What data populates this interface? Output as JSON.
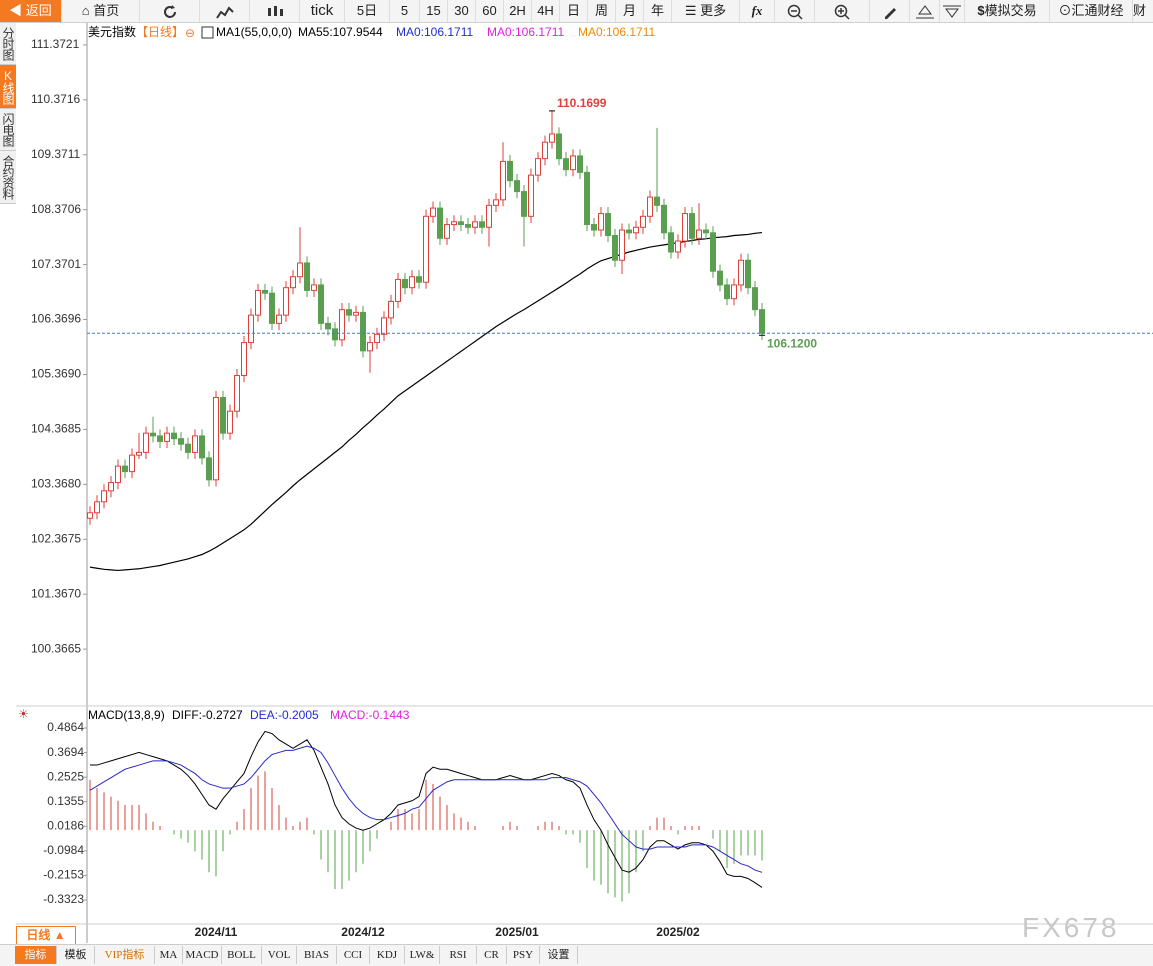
{
  "toolbar": {
    "items": [
      "返回",
      "首页",
      "tick",
      "5日",
      "5",
      "15",
      "30",
      "60",
      "2H",
      "4H",
      "日",
      "周",
      "月",
      "年",
      "更多",
      "模拟交易",
      "汇通财经",
      "财"
    ]
  },
  "side_tabs": [
    "分时图",
    "K线图",
    "闪电图",
    "合约资料"
  ],
  "chart_data": [
    {
      "type": "candlestick",
      "title": "美元指数",
      "period": "【日线】",
      "legend": [
        {
          "text": "MA1(55,0,0,0)",
          "color": "#000000"
        },
        {
          "text": "MA55:107.9544",
          "color": "#000000"
        },
        {
          "text": "MA0:106.1711",
          "color": "#1f2ad6"
        },
        {
          "text": "MA0:106.1711",
          "color": "#e020e0"
        },
        {
          "text": "MA0:106.1711",
          "color": "#f08a00"
        }
      ],
      "up_color": "#e0403a",
      "down_color": "#5a9e50",
      "categories": [
        null,
        null,
        null,
        null,
        null,
        null,
        null,
        null,
        null,
        null,
        null,
        null,
        null,
        null,
        null,
        null,
        null,
        null,
        "2024/11",
        null,
        null,
        null,
        null,
        null,
        null,
        null,
        null,
        null,
        null,
        null,
        null,
        null,
        null,
        null,
        null,
        null,
        null,
        null,
        null,
        "2024/12",
        null,
        null,
        null,
        null,
        null,
        null,
        null,
        null,
        null,
        null,
        null,
        null,
        null,
        null,
        null,
        null,
        null,
        null,
        null,
        null,
        null,
        "2025/01",
        null,
        null,
        null,
        null,
        null,
        null,
        null,
        null,
        null,
        null,
        null,
        null,
        null,
        null,
        null,
        null,
        null,
        null,
        null,
        null,
        null,
        null,
        "2025/02",
        null,
        null,
        null,
        null,
        null,
        null,
        null,
        null,
        null,
        null,
        null,
        null
      ],
      "open": [
        102.75,
        102.85,
        103.05,
        103.25,
        103.4,
        103.7,
        103.6,
        103.9,
        103.95,
        104.3,
        104.25,
        104.15,
        104.3,
        104.2,
        104.1,
        103.95,
        104.25,
        103.85,
        103.45,
        104.95,
        104.3,
        104.7,
        105.35,
        105.95,
        106.45,
        106.9,
        106.85,
        106.3,
        106.45,
        106.95,
        107.15,
        107.4,
        106.9,
        107.0,
        106.3,
        106.2,
        106.0,
        106.55,
        106.45,
        106.5,
        105.8,
        105.95,
        106.1,
        106.4,
        106.7,
        107.1,
        106.95,
        107.15,
        107.05,
        108.25,
        108.4,
        107.85,
        108.1,
        108.15,
        108.1,
        108.05,
        108.15,
        108.05,
        108.45,
        108.55,
        109.25,
        108.9,
        108.7,
        108.25,
        109.0,
        109.3,
        109.6,
        109.75,
        109.3,
        109.1,
        109.35,
        109.05,
        108.1,
        108.0,
        108.3,
        107.9,
        107.45,
        108.0,
        107.95,
        108.05,
        108.25,
        108.6,
        108.45,
        107.95,
        107.6,
        107.8,
        108.3,
        107.85,
        108.0,
        107.95,
        107.25,
        107.0,
        106.75,
        107.0,
        107.45,
        106.95,
        106.55
      ],
      "high": [
        102.97,
        103.17,
        103.37,
        103.52,
        103.82,
        103.82,
        104.02,
        104.3,
        104.42,
        104.6,
        104.37,
        104.42,
        104.42,
        104.32,
        104.22,
        104.37,
        104.37,
        103.97,
        105.07,
        105.07,
        104.82,
        105.47,
        106.07,
        106.57,
        107.02,
        107.02,
        106.97,
        106.57,
        107.07,
        107.27,
        108.05,
        107.52,
        107.12,
        107.12,
        106.42,
        106.32,
        106.67,
        106.67,
        106.62,
        106.62,
        106.07,
        106.22,
        106.52,
        106.82,
        107.22,
        107.22,
        107.27,
        107.27,
        108.37,
        108.52,
        108.52,
        108.22,
        108.27,
        108.27,
        108.22,
        108.27,
        108.27,
        108.57,
        108.67,
        109.6,
        109.37,
        109.02,
        108.82,
        109.12,
        109.42,
        109.72,
        110.1699,
        109.87,
        109.42,
        109.47,
        109.47,
        109.17,
        108.22,
        108.42,
        108.42,
        108.02,
        108.12,
        108.12,
        108.17,
        108.37,
        108.72,
        109.86,
        108.57,
        108.07,
        107.92,
        108.42,
        108.42,
        108.49,
        108.12,
        108.07,
        107.37,
        107.12,
        107.12,
        107.57,
        107.57,
        107.07,
        106.67
      ],
      "low": [
        102.63,
        102.73,
        102.93,
        103.13,
        103.28,
        103.48,
        103.48,
        103.83,
        103.83,
        104.13,
        104.03,
        104.03,
        104.08,
        103.98,
        103.83,
        103.83,
        103.73,
        103.33,
        103.33,
        104.18,
        104.18,
        104.58,
        105.23,
        105.83,
        106.33,
        106.73,
        106.18,
        106.18,
        106.33,
        106.83,
        107.03,
        106.78,
        106.78,
        106.18,
        106.08,
        105.88,
        105.88,
        106.33,
        106.33,
        105.68,
        105.4,
        105.83,
        105.98,
        106.28,
        106.58,
        106.83,
        106.83,
        106.93,
        106.93,
        108.13,
        107.73,
        107.73,
        107.98,
        107.98,
        107.93,
        107.93,
        107.93,
        107.7,
        108.33,
        108.43,
        108.78,
        108.58,
        107.7,
        108.13,
        108.88,
        109.18,
        109.48,
        109.18,
        108.98,
        108.98,
        108.93,
        107.98,
        107.88,
        107.88,
        107.78,
        107.33,
        107.2,
        107.83,
        107.83,
        107.93,
        108.13,
        108.33,
        107.83,
        107.48,
        107.48,
        107.68,
        107.73,
        107.73,
        107.83,
        107.13,
        106.88,
        106.63,
        106.63,
        106.88,
        106.83,
        106.43,
        106.0
      ],
      "close": [
        102.85,
        103.05,
        103.25,
        103.4,
        103.7,
        103.6,
        103.9,
        103.95,
        104.3,
        104.25,
        104.15,
        104.3,
        104.2,
        104.1,
        103.95,
        104.25,
        103.85,
        103.45,
        104.95,
        104.3,
        104.7,
        105.35,
        105.95,
        106.45,
        106.9,
        106.85,
        106.3,
        106.45,
        106.95,
        107.15,
        107.4,
        106.9,
        107.0,
        106.3,
        106.2,
        106.0,
        106.55,
        106.45,
        106.5,
        105.8,
        105.95,
        106.1,
        106.4,
        106.7,
        107.1,
        106.95,
        107.15,
        107.05,
        108.25,
        108.4,
        107.85,
        108.1,
        108.15,
        108.1,
        108.05,
        108.15,
        108.05,
        108.45,
        108.55,
        109.25,
        108.9,
        108.7,
        108.25,
        109.0,
        109.3,
        109.6,
        109.75,
        109.3,
        109.1,
        109.35,
        109.05,
        108.1,
        108.0,
        108.3,
        107.9,
        107.45,
        108.0,
        107.95,
        108.05,
        108.25,
        108.6,
        108.45,
        107.95,
        107.6,
        107.8,
        108.3,
        107.85,
        108.0,
        107.95,
        107.25,
        107.0,
        106.75,
        107.0,
        107.45,
        106.95,
        106.55,
        106.12
      ],
      "series": [
        {
          "name": "MA55",
          "color": "#000000",
          "values": [
            101.86,
            101.84,
            101.82,
            101.81,
            101.8,
            101.81,
            101.82,
            101.83,
            101.85,
            101.87,
            101.89,
            101.92,
            101.95,
            101.98,
            102.01,
            102.05,
            102.09,
            102.15,
            102.22,
            102.3,
            102.38,
            102.46,
            102.54,
            102.64,
            102.76,
            102.88,
            103.0,
            103.11,
            103.22,
            103.34,
            103.45,
            103.55,
            103.65,
            103.75,
            103.85,
            103.95,
            104.05,
            104.17,
            104.28,
            104.4,
            104.51,
            104.63,
            104.74,
            104.86,
            104.98,
            105.07,
            105.16,
            105.25,
            105.34,
            105.43,
            105.52,
            105.61,
            105.7,
            105.79,
            105.88,
            105.97,
            106.06,
            106.15,
            106.24,
            106.32,
            106.4,
            106.48,
            106.55,
            106.63,
            106.71,
            106.79,
            106.87,
            106.95,
            107.03,
            107.12,
            107.2,
            107.29,
            107.37,
            107.44,
            107.48,
            107.52,
            107.56,
            107.6,
            107.63,
            107.66,
            107.69,
            107.71,
            107.73,
            107.75,
            107.77,
            107.79,
            107.81,
            107.83,
            107.84,
            107.86,
            107.87,
            107.88,
            107.9,
            107.91,
            107.92,
            107.94,
            107.9544
          ]
        }
      ],
      "annotations": [
        {
          "value": 110.1699,
          "label": "110.1699"
        },
        {
          "value": 106.12,
          "label": "106.1200"
        }
      ],
      "ylim": [
        99.44,
        111.68
      ],
      "yticks": [
        111.3721,
        110.3716,
        109.3711,
        108.3706,
        107.3701,
        106.3696,
        {
          "value": 105.369,
          "label": "105.3690"
        },
        104.3685,
        {
          "value": 103.368,
          "label": "103.3680"
        },
        102.3675,
        {
          "value": 101.367,
          "label": "101.3670"
        },
        100.3665
      ],
      "grid": false
    },
    {
      "type": "macd",
      "title": "MACD(13,8,9)",
      "legend": [
        {
          "text": "DIFF:-0.2727",
          "color": "#000000"
        },
        {
          "text": "DEA:-0.2005",
          "color": "#1f2ad6"
        },
        {
          "text": "MACD:-0.1443",
          "color": "#e020e0"
        }
      ],
      "up_color": "#d9413a",
      "down_color": "#5aa14d",
      "series": [
        {
          "name": "DIFF",
          "color": "#000000",
          "values": [
            0.31,
            0.31,
            0.32,
            0.33,
            0.34,
            0.35,
            0.36,
            0.37,
            0.36,
            0.35,
            0.34,
            0.33,
            0.31,
            0.29,
            0.26,
            0.22,
            0.17,
            0.12,
            0.1,
            0.15,
            0.19,
            0.23,
            0.27,
            0.35,
            0.42,
            0.47,
            0.46,
            0.43,
            0.41,
            0.39,
            0.41,
            0.43,
            0.38,
            0.3,
            0.22,
            0.12,
            0.06,
            0.03,
            0.01,
            0.0,
            0.01,
            0.03,
            0.05,
            0.08,
            0.12,
            0.13,
            0.14,
            0.16,
            0.27,
            0.3,
            0.29,
            0.29,
            0.28,
            0.27,
            0.26,
            0.25,
            0.24,
            0.24,
            0.24,
            0.25,
            0.26,
            0.25,
            0.24,
            0.24,
            0.25,
            0.26,
            0.27,
            0.26,
            0.24,
            0.23,
            0.2,
            0.12,
            0.05,
            0.0,
            -0.07,
            -0.13,
            -0.19,
            -0.2,
            -0.18,
            -0.14,
            -0.08,
            -0.05,
            -0.05,
            -0.07,
            -0.09,
            -0.07,
            -0.06,
            -0.06,
            -0.07,
            -0.1,
            -0.15,
            -0.21,
            -0.22,
            -0.22,
            -0.23,
            -0.25,
            -0.2727
          ]
        },
        {
          "name": "DEA",
          "color": "#2828c8",
          "values": [
            0.19,
            0.21,
            0.23,
            0.25,
            0.27,
            0.29,
            0.3,
            0.31,
            0.32,
            0.33,
            0.33,
            0.33,
            0.32,
            0.31,
            0.29,
            0.27,
            0.24,
            0.22,
            0.21,
            0.2,
            0.2,
            0.21,
            0.22,
            0.25,
            0.29,
            0.33,
            0.36,
            0.37,
            0.38,
            0.38,
            0.39,
            0.4,
            0.39,
            0.37,
            0.32,
            0.26,
            0.2,
            0.15,
            0.11,
            0.08,
            0.06,
            0.05,
            0.05,
            0.06,
            0.07,
            0.08,
            0.1,
            0.11,
            0.15,
            0.19,
            0.21,
            0.23,
            0.24,
            0.24,
            0.24,
            0.24,
            0.24,
            0.24,
            0.24,
            0.24,
            0.24,
            0.24,
            0.24,
            0.24,
            0.24,
            0.24,
            0.25,
            0.25,
            0.25,
            0.24,
            0.23,
            0.21,
            0.17,
            0.13,
            0.08,
            0.03,
            -0.02,
            -0.05,
            -0.08,
            -0.09,
            -0.09,
            -0.08,
            -0.08,
            -0.08,
            -0.08,
            -0.08,
            -0.07,
            -0.07,
            -0.07,
            -0.08,
            -0.1,
            -0.12,
            -0.14,
            -0.16,
            -0.17,
            -0.19,
            -0.2005
          ]
        }
      ],
      "values": [
        0.24,
        0.2,
        0.18,
        0.16,
        0.14,
        0.12,
        0.12,
        0.12,
        0.08,
        0.04,
        0.02,
        0,
        -0.02,
        -0.04,
        -0.06,
        -0.1,
        -0.14,
        -0.2,
        -0.22,
        -0.1,
        -0.02,
        0.04,
        0.1,
        0.2,
        0.26,
        0.28,
        0.2,
        0.12,
        0.06,
        0.02,
        0.04,
        0.06,
        -0.02,
        -0.14,
        -0.2,
        -0.28,
        -0.28,
        -0.24,
        -0.2,
        -0.16,
        -0.1,
        -0.04,
        0,
        0.04,
        0.1,
        0.1,
        0.08,
        0.1,
        0.24,
        0.22,
        0.16,
        0.12,
        0.08,
        0.06,
        0.04,
        0.02,
        0,
        0,
        0,
        0.02,
        0.04,
        0.02,
        0,
        0,
        0.02,
        0.04,
        0.04,
        0.02,
        -0.02,
        -0.02,
        -0.06,
        -0.18,
        -0.24,
        -0.26,
        -0.3,
        -0.32,
        -0.34,
        -0.3,
        -0.2,
        -0.1,
        0.02,
        0.06,
        0.06,
        0.02,
        -0.02,
        0.02,
        0.02,
        0.02,
        0,
        -0.04,
        -0.1,
        -0.18,
        -0.16,
        -0.12,
        -0.12,
        -0.12,
        -0.1443
      ],
      "ylim": [
        -0.418,
        0.5816
      ],
      "yticks": [
        0.4864,
        0.3694,
        0.2525,
        0.1355,
        0.0186,
        -0.0984,
        -0.2153,
        -0.3323
      ],
      "grid": false
    }
  ],
  "bottom_bar": {
    "period": "日线 ▲",
    "tabs": [
      "指标",
      "模板",
      "VIP指标",
      "MA",
      "MACD",
      "BOLL",
      "VOL",
      "BIAS",
      "CCI",
      "KDJ",
      "LW&",
      "RSI",
      "CR",
      "PSY",
      "设置"
    ]
  },
  "watermark": "FX678"
}
